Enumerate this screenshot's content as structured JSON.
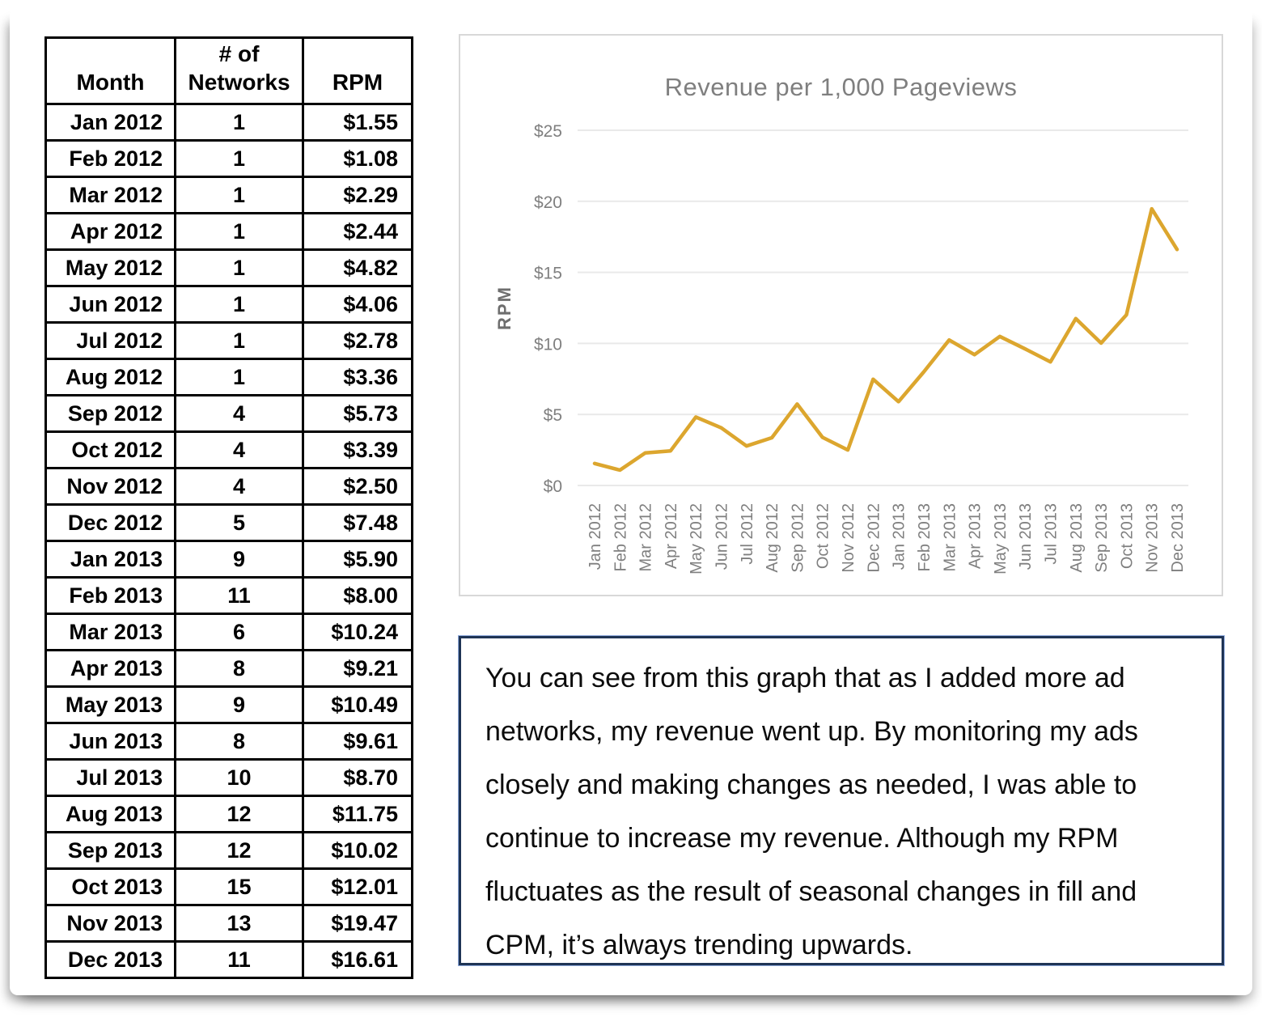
{
  "table": {
    "header": {
      "month": "Month",
      "networks_line1": "# of",
      "networks_line2": "Networks",
      "rpm": "RPM"
    },
    "rows": [
      [
        "Jan 2012",
        "1",
        "$1.55"
      ],
      [
        "Feb 2012",
        "1",
        "$1.08"
      ],
      [
        "Mar 2012",
        "1",
        "$2.29"
      ],
      [
        "Apr 2012",
        "1",
        "$2.44"
      ],
      [
        "May 2012",
        "1",
        "$4.82"
      ],
      [
        "Jun 2012",
        "1",
        "$4.06"
      ],
      [
        "Jul 2012",
        "1",
        "$2.78"
      ],
      [
        "Aug 2012",
        "1",
        "$3.36"
      ],
      [
        "Sep 2012",
        "4",
        "$5.73"
      ],
      [
        "Oct 2012",
        "4",
        "$3.39"
      ],
      [
        "Nov 2012",
        "4",
        "$2.50"
      ],
      [
        "Dec 2012",
        "5",
        "$7.48"
      ],
      [
        "Jan 2013",
        "9",
        "$5.90"
      ],
      [
        "Feb 2013",
        "11",
        "$8.00"
      ],
      [
        "Mar 2013",
        "6",
        "$10.24"
      ],
      [
        "Apr 2013",
        "8",
        "$9.21"
      ],
      [
        "May 2013",
        "9",
        "$10.49"
      ],
      [
        "Jun 2013",
        "8",
        "$9.61"
      ],
      [
        "Jul 2013",
        "10",
        "$8.70"
      ],
      [
        "Aug 2013",
        "12",
        "$11.75"
      ],
      [
        "Sep 2013",
        "12",
        "$10.02"
      ],
      [
        "Oct 2013",
        "15",
        "$12.01"
      ],
      [
        "Nov 2013",
        "13",
        "$19.47"
      ],
      [
        "Dec 2013",
        "11",
        "$16.61"
      ]
    ]
  },
  "chart_data": {
    "type": "line",
    "title": "Revenue per 1,000 Pageviews",
    "xlabel": "",
    "ylabel": "RPM",
    "categories": [
      "Jan 2012",
      "Feb 2012",
      "Mar 2012",
      "Apr 2012",
      "May 2012",
      "Jun 2012",
      "Jul 2012",
      "Aug 2012",
      "Sep 2012",
      "Oct 2012",
      "Nov 2012",
      "Dec 2012",
      "Jan 2013",
      "Feb 2013",
      "Mar 2013",
      "Apr 2013",
      "May 2013",
      "Jun 2013",
      "Jul 2013",
      "Aug 2013",
      "Sep 2013",
      "Oct 2013",
      "Nov 2013",
      "Dec 2013"
    ],
    "values": [
      1.55,
      1.08,
      2.29,
      2.44,
      4.82,
      4.06,
      2.78,
      3.36,
      5.73,
      3.39,
      2.5,
      7.48,
      5.9,
      8.0,
      10.24,
      9.21,
      10.49,
      9.61,
      8.7,
      11.75,
      10.02,
      12.01,
      19.47,
      16.61
    ],
    "ylim": [
      0,
      25
    ],
    "yticks": [
      0,
      5,
      10,
      15,
      20,
      25
    ],
    "ytick_labels": [
      "$0",
      "$5",
      "$10",
      "$15",
      "$20",
      "$25"
    ],
    "grid": true,
    "legend": "none",
    "line_color": "#DCA62E",
    "gridline_color": "#e9e9e9",
    "label_color": "#7f7f7f"
  },
  "note": {
    "text": "You can see from this graph that as I added more ad networks, my revenue went up. By monitoring my ads closely and making changes as needed, I was able to continue to increase my revenue. Although my RPM fluctuates as the result of seasonal changes in fill and CPM, it’s always trending upwards."
  }
}
